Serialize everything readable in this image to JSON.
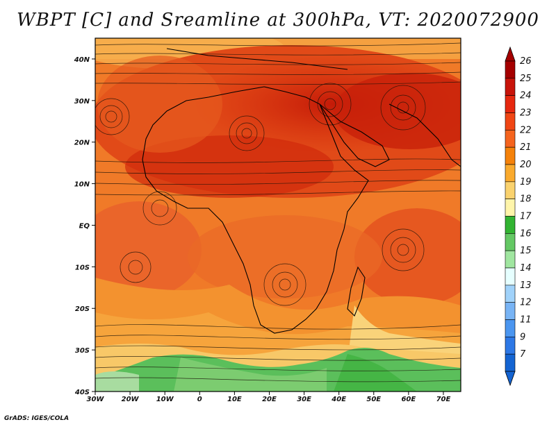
{
  "title": "WBPT [C] and Sreamline at 300hPa, VT: 2020072900",
  "credit": "GrADS: IGES/COLA",
  "map": {
    "lat_range": [
      -40,
      45
    ],
    "lon_range": [
      -30,
      75
    ],
    "lat_ticks": [
      {
        "value": 40,
        "label": "40N"
      },
      {
        "value": 30,
        "label": "30N"
      },
      {
        "value": 20,
        "label": "20N"
      },
      {
        "value": 10,
        "label": "10N"
      },
      {
        "value": 0,
        "label": "EQ"
      },
      {
        "value": -10,
        "label": "10S"
      },
      {
        "value": -20,
        "label": "20S"
      },
      {
        "value": -30,
        "label": "30S"
      },
      {
        "value": -40,
        "label": "40S"
      }
    ],
    "lon_ticks": [
      {
        "value": -30,
        "label": "30W"
      },
      {
        "value": -20,
        "label": "20W"
      },
      {
        "value": -10,
        "label": "10W"
      },
      {
        "value": 0,
        "label": "0"
      },
      {
        "value": 10,
        "label": "10E"
      },
      {
        "value": 20,
        "label": "20E"
      },
      {
        "value": 30,
        "label": "30E"
      },
      {
        "value": 40,
        "label": "40E"
      },
      {
        "value": 50,
        "label": "50E"
      },
      {
        "value": 60,
        "label": "60E"
      },
      {
        "value": 70,
        "label": "70E"
      }
    ]
  },
  "colorbar": {
    "labels": [
      "26",
      "25",
      "24",
      "23",
      "22",
      "21",
      "20",
      "19",
      "18",
      "17",
      "16",
      "15",
      "14",
      "13",
      "12",
      "11",
      "9",
      "7"
    ],
    "colors": [
      "#a50000",
      "#c8140a",
      "#e6280f",
      "#f04614",
      "#f5641e",
      "#f5820a",
      "#faaa2d",
      "#fad26e",
      "#fff5aa",
      "#32b432",
      "#64c864",
      "#a0e6a0",
      "#e6ffff",
      "#a0d2fa",
      "#78b4f5",
      "#4b96f0",
      "#2d78e6",
      "#1464d2"
    ]
  }
}
